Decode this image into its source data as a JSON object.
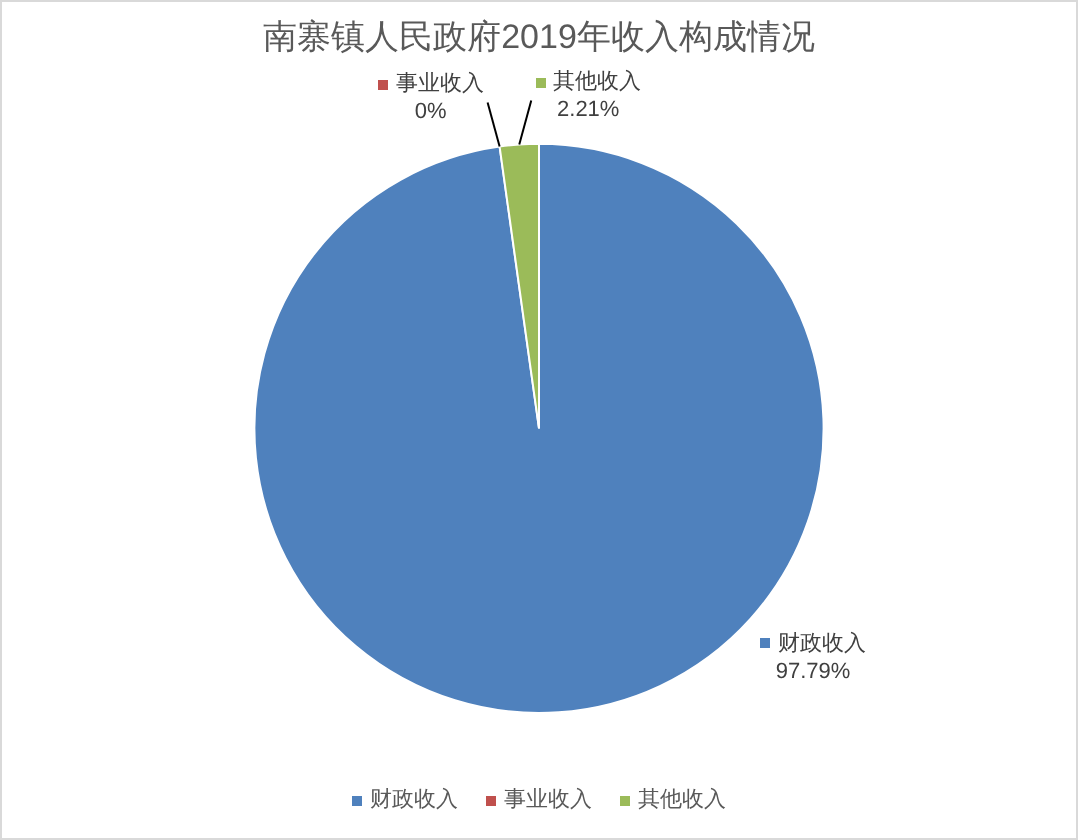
{
  "chart_data": {
    "type": "pie",
    "title": "南寨镇人民政府2019年收入构成情况",
    "categories": [
      "财政收入",
      "事业收入",
      "其他收入"
    ],
    "values": [
      97.79,
      0,
      2.21
    ],
    "value_labels": [
      "97.79%",
      "0%",
      "2.21%"
    ],
    "colors": [
      "#4f81bd",
      "#c0504d",
      "#9bbb59"
    ],
    "legend": "bottom"
  }
}
